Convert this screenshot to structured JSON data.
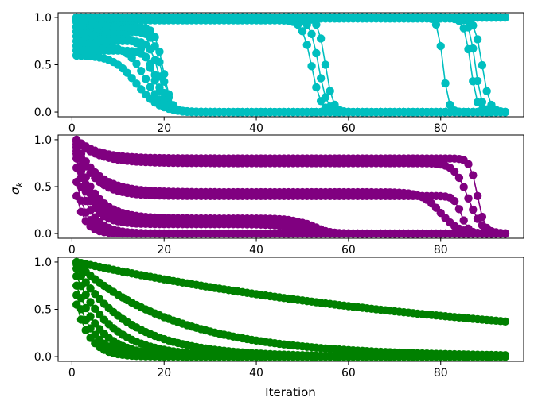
{
  "chart_data": {
    "type": "line",
    "xlabel": "Iteration",
    "ylabel": "σ",
    "ylabel_subscript": "k",
    "ylabel_panel_index": 1,
    "x_range": [
      1,
      94
    ],
    "xlim": [
      -3,
      98
    ],
    "grid": false,
    "legend": "none",
    "marker": "circle",
    "x_ticks": [
      0,
      20,
      40,
      60,
      80
    ],
    "x_tick_labels": [
      "0",
      "20",
      "40",
      "60",
      "80"
    ],
    "panels": [
      {
        "color": "#00bfbf",
        "ylim": [
          -0.05,
          1.05
        ],
        "y_ticks": [
          0.0,
          0.5,
          1.0
        ],
        "y_tick_labels": [
          "0.0",
          "0.5",
          "1.0"
        ],
        "series": [
          {
            "kind": "logistic",
            "start": 1.0,
            "end": 0.0,
            "mid": 55.0,
            "width": 0.8
          },
          {
            "kind": "logistic",
            "start": 0.98,
            "end": 0.0,
            "mid": 53.5,
            "width": 0.9
          },
          {
            "kind": "logistic",
            "start": 0.97,
            "end": 0.0,
            "mid": 52.0,
            "width": 1.0
          },
          {
            "kind": "logistic",
            "start": 1.0,
            "end": 0.0,
            "mid": 80.5,
            "width": 0.6
          },
          {
            "kind": "logistic",
            "start": 0.99,
            "end": 0.0,
            "mid": 86.5,
            "width": 0.7
          },
          {
            "kind": "logistic",
            "start": 1.0,
            "end": 0.0,
            "mid": 87.5,
            "width": 0.7
          },
          {
            "kind": "logistic",
            "start": 0.99,
            "end": 0.0,
            "mid": 89.0,
            "width": 0.8
          },
          {
            "kind": "logistic",
            "start": 0.6,
            "end": 0.0,
            "mid": 14.0,
            "width": 2.5
          },
          {
            "kind": "logistic",
            "start": 0.7,
            "end": 0.0,
            "mid": 16.0,
            "width": 2.0
          },
          {
            "kind": "logistic",
            "start": 0.8,
            "end": 0.0,
            "mid": 17.5,
            "width": 1.5
          },
          {
            "kind": "logistic",
            "start": 0.65,
            "end": 0.0,
            "mid": 18.5,
            "width": 1.2
          },
          {
            "kind": "logistic",
            "start": 0.75,
            "end": 0.0,
            "mid": 19.0,
            "width": 1.0
          },
          {
            "kind": "logistic",
            "start": 0.85,
            "end": 0.0,
            "mid": 19.5,
            "width": 1.0
          },
          {
            "kind": "logistic",
            "start": 0.9,
            "end": 0.0,
            "mid": 19.8,
            "width": 0.9
          },
          {
            "kind": "rise",
            "start": 0.6,
            "end": 1.0,
            "rate": 0.22
          },
          {
            "kind": "rise",
            "start": 0.65,
            "end": 1.0,
            "rate": 0.28
          },
          {
            "kind": "rise",
            "start": 0.7,
            "end": 1.0,
            "rate": 0.32
          },
          {
            "kind": "rise",
            "start": 0.75,
            "end": 1.0,
            "rate": 0.36
          },
          {
            "kind": "rise",
            "start": 0.8,
            "end": 1.0,
            "rate": 0.42
          },
          {
            "kind": "rise",
            "start": 0.85,
            "end": 1.0,
            "rate": 0.5
          },
          {
            "kind": "rise",
            "start": 0.9,
            "end": 1.0,
            "rate": 0.6
          },
          {
            "kind": "rise",
            "start": 0.95,
            "end": 1.0,
            "rate": 0.8
          }
        ]
      },
      {
        "color": "#800080",
        "ylim": [
          -0.05,
          1.05
        ],
        "y_ticks": [
          0.0,
          0.5,
          1.0
        ],
        "y_tick_labels": [
          "0.0",
          "0.5",
          "1.0"
        ],
        "series": [
          {
            "kind": "plateau",
            "start": 1.0,
            "plateau": 0.8,
            "rate": 0.22,
            "drop_mid": 88.0,
            "drop_width": 0.8
          },
          {
            "kind": "plateau",
            "start": 0.98,
            "plateau": 0.75,
            "rate": 0.2,
            "drop_mid": 86.0,
            "drop_width": 1.5
          },
          {
            "kind": "plateau",
            "start": 0.95,
            "plateau": 0.44,
            "rate": 0.22,
            "drop_mid": 80.0,
            "drop_width": 2.0
          },
          {
            "kind": "plateau",
            "start": 0.92,
            "plateau": 0.4,
            "rate": 0.25,
            "drop_mid": 84.5,
            "drop_width": 0.8
          },
          {
            "kind": "plateau",
            "start": 0.88,
            "plateau": 0.16,
            "rate": 0.25,
            "drop_mid": 51.5,
            "drop_width": 2.0
          },
          {
            "kind": "plateau",
            "start": 0.85,
            "plateau": 0.13,
            "rate": 0.3,
            "drop_mid": 53.0,
            "drop_width": 1.5
          },
          {
            "kind": "plateau",
            "start": 0.8,
            "plateau": 0.1,
            "rate": 0.35,
            "drop_mid": 49.0,
            "drop_width": 2.5
          },
          {
            "kind": "plateau",
            "start": 0.7,
            "plateau": 0.0,
            "rate": 0.35,
            "drop_mid": 40.0,
            "drop_width": 2.0
          },
          {
            "kind": "plateau",
            "start": 0.55,
            "plateau": 0.0,
            "rate": 0.45,
            "drop_mid": 40.0,
            "drop_width": 2.0
          },
          {
            "kind": "plateau",
            "start": 0.4,
            "plateau": 0.0,
            "rate": 0.55,
            "drop_mid": 40.0,
            "drop_width": 2.0
          }
        ]
      },
      {
        "color": "#008000",
        "ylim": [
          -0.05,
          1.05
        ],
        "y_ticks": [
          0.0,
          0.5,
          1.0
        ],
        "y_tick_labels": [
          "0.0",
          "0.5",
          "1.0"
        ],
        "series": [
          {
            "kind": "decay",
            "start": 1.0,
            "rate": 0.01065
          },
          {
            "kind": "decay",
            "start": 0.98,
            "rate": 0.045
          },
          {
            "kind": "decay",
            "start": 0.93,
            "rate": 0.085
          },
          {
            "kind": "decay",
            "start": 0.85,
            "rate": 0.13
          },
          {
            "kind": "decay",
            "start": 0.75,
            "rate": 0.19
          },
          {
            "kind": "decay",
            "start": 0.65,
            "rate": 0.26
          },
          {
            "kind": "decay",
            "start": 0.55,
            "rate": 0.34
          }
        ]
      }
    ]
  }
}
